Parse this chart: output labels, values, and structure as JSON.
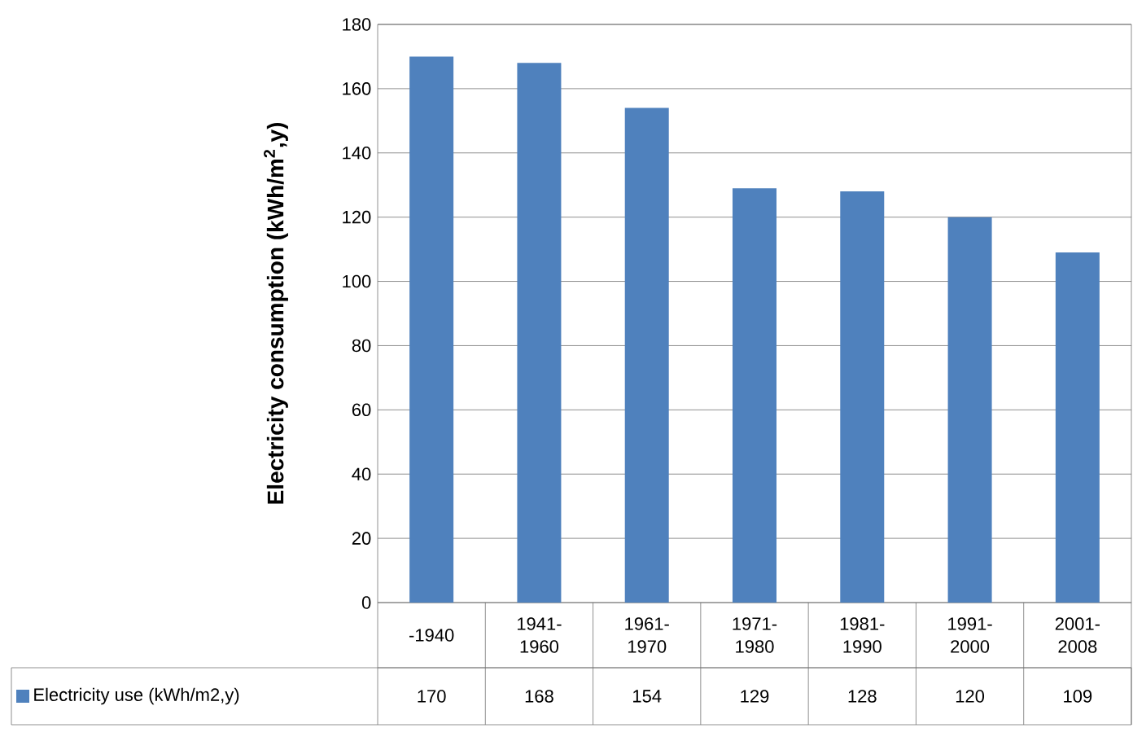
{
  "chart_data": {
    "type": "bar",
    "ylabel": "Electricity consumption (kWh/m$^{2}$,y)",
    "categories": [
      "-1940",
      "1941-1960",
      "1961-1970",
      "1971-1980",
      "1981-1990",
      "1991-2000",
      "2001-2008"
    ],
    "series": [
      {
        "name": "Electricity use (kWh/m2,y)",
        "color": "#4f81bd",
        "values": [
          170,
          168,
          154,
          129,
          128,
          120,
          109
        ]
      }
    ],
    "ylim": [
      0,
      180
    ],
    "yticks": [
      0,
      20,
      40,
      60,
      80,
      100,
      120,
      140,
      160,
      180
    ],
    "grid": "y",
    "data_labels": true
  }
}
